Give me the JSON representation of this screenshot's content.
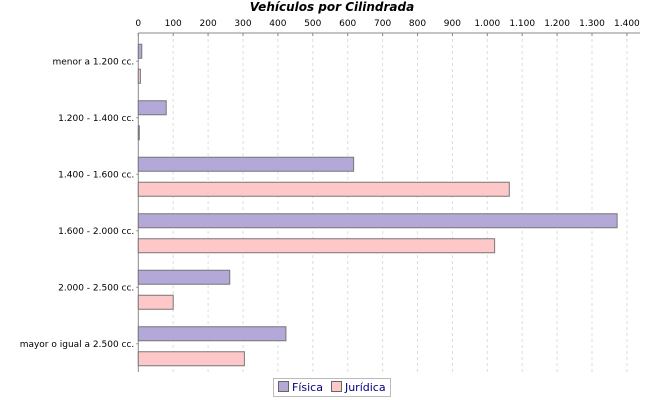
{
  "chart_data": {
    "type": "bar",
    "orientation": "horizontal",
    "title": "Vehículos por Cilindrada",
    "categories": [
      "menor a 1.200 cc.",
      "1.200 - 1.400 cc.",
      "1.400 - 1.600 cc.",
      "1.600 - 2.000 cc.",
      "2.000 - 2.500 cc.",
      "mayor o igual a 2.500 cc."
    ],
    "series": [
      {
        "name": "Física",
        "color": "#b4a8d8",
        "values": [
          10,
          80,
          617,
          1372,
          262,
          423
        ]
      },
      {
        "name": "Jurídica",
        "color": "#ffc8c8",
        "values": [
          6,
          2,
          1063,
          1021,
          100,
          304
        ]
      }
    ],
    "xlim": [
      0,
      1400
    ],
    "ticks": [
      "0",
      "100",
      "200",
      "300",
      "400",
      "500",
      "600",
      "700",
      "800",
      "900",
      "1.000",
      "1.100",
      "1.200",
      "1.300",
      "1.400"
    ],
    "axis_position": "top",
    "grid": true,
    "legend_position": "bottom"
  }
}
